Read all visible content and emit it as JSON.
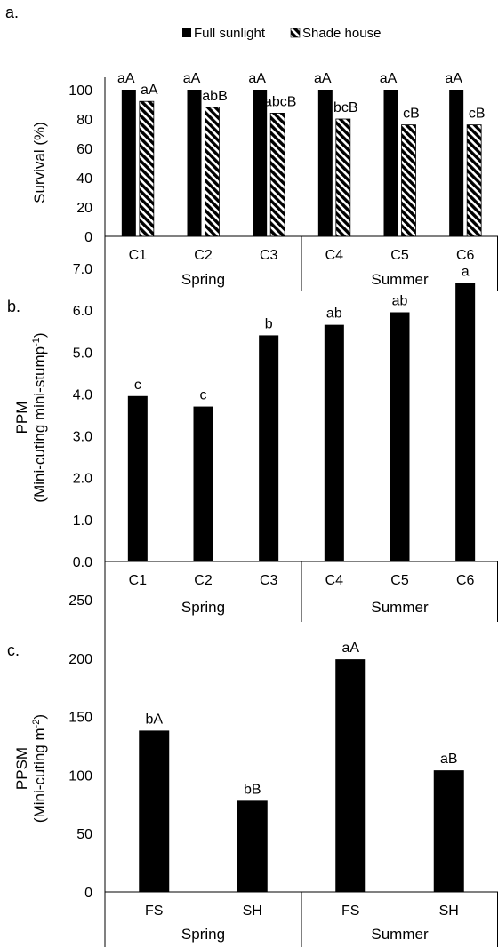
{
  "chart_data": [
    {
      "type": "bar",
      "panel_label": "a.",
      "categories": [
        "C1",
        "C2",
        "C3",
        "C4",
        "C5",
        "C6"
      ],
      "groups": [
        {
          "label": "Spring",
          "categories": [
            "C1",
            "C2",
            "C3"
          ]
        },
        {
          "label": "Summer",
          "categories": [
            "C4",
            "C5",
            "C6"
          ]
        }
      ],
      "ylabel": "Survival (%)",
      "ylim": [
        0,
        100
      ],
      "yticks": [
        "0",
        "20",
        "40",
        "60",
        "80",
        "100"
      ],
      "legend_position": "top-center",
      "series": [
        {
          "name": "Full sunlight",
          "fill": "solid-black",
          "values": [
            100,
            100,
            100,
            100,
            100,
            100
          ],
          "labels": [
            "aA",
            "aA",
            "aA",
            "aA",
            "aA",
            "aA"
          ]
        },
        {
          "name": "Shade house",
          "fill": "diagonal-hatch",
          "values": [
            92,
            88,
            84,
            80,
            76,
            76
          ],
          "labels": [
            "aA",
            "abB",
            "abcB",
            "bcB",
            "cB",
            "cB"
          ]
        }
      ]
    },
    {
      "type": "bar",
      "panel_label": "b.",
      "categories": [
        "C1",
        "C2",
        "C3",
        "C4",
        "C5",
        "C6"
      ],
      "groups": [
        {
          "label": "Spring",
          "categories": [
            "C1",
            "C2",
            "C3"
          ]
        },
        {
          "label": "Summer",
          "categories": [
            "C4",
            "C5",
            "C6"
          ]
        }
      ],
      "ylabel": "PPM",
      "ylabel_line2": "(Mini-cuting mini-stump",
      "ylabel_sup": "-1",
      "ylabel_close": ")",
      "ylim": [
        0,
        7
      ],
      "yticks": [
        "0.0",
        "1.0",
        "2.0",
        "3.0",
        "4.0",
        "5.0",
        "6.0",
        "7.0"
      ],
      "series": [
        {
          "name": "",
          "fill": "solid-black",
          "values": [
            3.95,
            3.7,
            5.4,
            5.65,
            5.95,
            6.65
          ],
          "labels": [
            "c",
            "c",
            "b",
            "ab",
            "ab",
            "a"
          ]
        }
      ]
    },
    {
      "type": "bar",
      "panel_label": "c.",
      "categories": [
        "FS",
        "SH",
        "FS",
        "SH"
      ],
      "groups": [
        {
          "label": "Spring",
          "categories": [
            "FS",
            "SH"
          ]
        },
        {
          "label": "Summer",
          "categories": [
            "FS",
            "SH"
          ]
        }
      ],
      "ylabel": "PPSM",
      "ylabel_line2": "(Mini-cuting m",
      "ylabel_sup": "-2",
      "ylabel_close": ")",
      "ylim": [
        0,
        250
      ],
      "yticks": [
        "0",
        "50",
        "100",
        "150",
        "200",
        "250"
      ],
      "series": [
        {
          "name": "",
          "fill": "solid-black",
          "values": [
            138,
            78,
            199,
            104
          ],
          "labels": [
            "bA",
            "bB",
            "aA",
            "aB"
          ]
        }
      ]
    }
  ]
}
